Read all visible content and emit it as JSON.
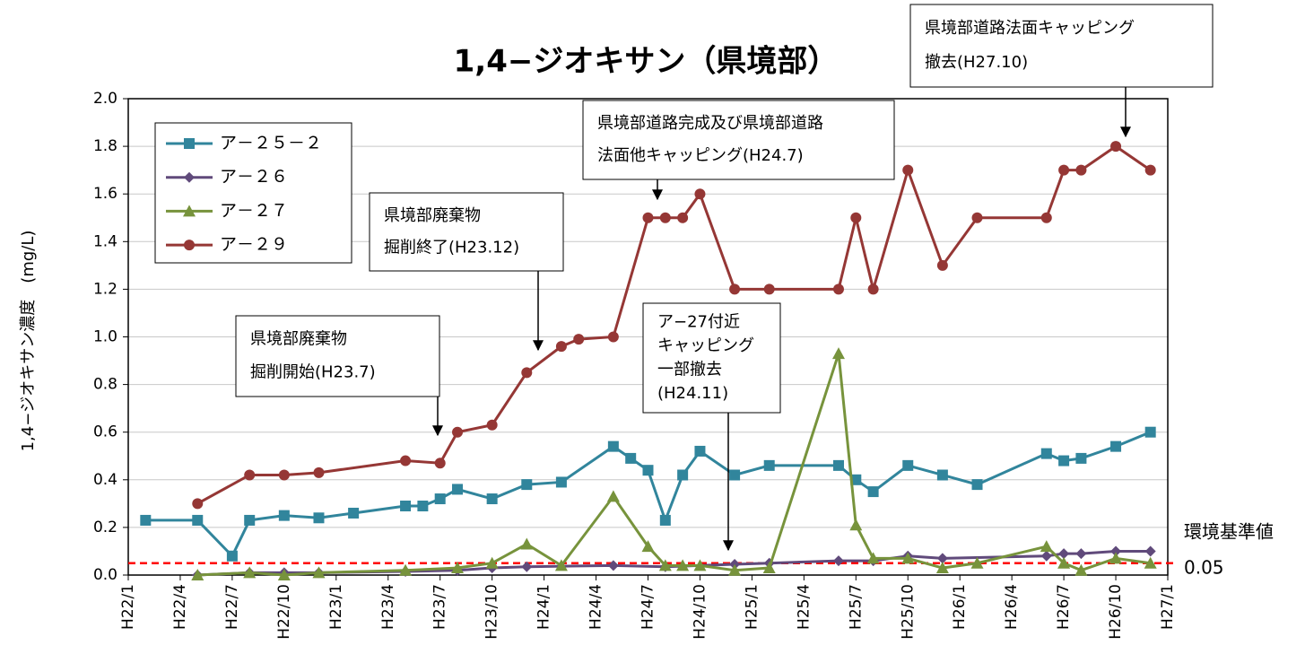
{
  "chart_data": {
    "type": "line",
    "title": "1,4−ジオキサン（県境部）",
    "y_label": "1,4−ジオキサン濃度　(mg/L)",
    "xlim": [
      "H22/1",
      "H27/1"
    ],
    "xticks": [
      "H22/1",
      "H22/4",
      "H22/7",
      "H22/10",
      "H23/1",
      "H23/4",
      "H23/7",
      "H23/10",
      "H24/1",
      "H24/4",
      "H24/7",
      "H24/10",
      "H25/1",
      "H25/4",
      "H25/7",
      "H25/10",
      "H26/1",
      "H26/4",
      "H26/7",
      "H26/10",
      "H27/1"
    ],
    "ylim": [
      0,
      2
    ],
    "yticks": [
      {
        "value": 0,
        "label": "0.0"
      },
      {
        "value": 0.2,
        "label": "0.2"
      },
      {
        "value": 0.4,
        "label": "0.4"
      },
      {
        "value": 0.6,
        "label": "0.6"
      },
      {
        "value": 0.8,
        "label": "0.8"
      },
      {
        "value": 1,
        "label": "1.0"
      },
      {
        "value": 1.2,
        "label": "1.2"
      },
      {
        "value": 1.4,
        "label": "1.4"
      },
      {
        "value": 1.6,
        "label": "1.6"
      },
      {
        "value": 1.8,
        "label": "1.8"
      },
      {
        "value": 2,
        "label": "2.0"
      }
    ],
    "grid": true,
    "legend": "upper left",
    "series": [
      {
        "name": "ア－２５－２",
        "color": "#31859c",
        "marker": "square",
        "x": [
          "H22/2",
          "H22/5",
          "H22/7",
          "H22/8",
          "H22/10",
          "H22/12",
          "H23/2",
          "H23/5",
          "H23/6",
          "H23/7",
          "H23/8",
          "H23/10",
          "H23/12",
          "H24/2",
          "H24/5",
          "H24/6",
          "H24/7",
          "H24/8",
          "H24/9",
          "H24/10",
          "H24/12",
          "H25/2",
          "H25/6",
          "H25/7",
          "H25/8",
          "H25/10",
          "H25/12",
          "H26/2",
          "H26/6",
          "H26/7",
          "H26/8",
          "H26/10",
          "H26/12"
        ],
        "values": [
          0.23,
          0.23,
          0.08,
          0.23,
          0.25,
          0.24,
          0.26,
          0.29,
          0.29,
          0.32,
          0.36,
          0.32,
          0.38,
          0.39,
          0.54,
          0.49,
          0.44,
          0.23,
          0.42,
          0.52,
          0.42,
          0.46,
          0.46,
          0.4,
          0.35,
          0.46,
          0.42,
          0.38,
          0.51,
          0.48,
          0.49,
          0.54,
          0.6
        ]
      },
      {
        "name": "ア－２６",
        "color": "#604a7b",
        "marker": "diamond",
        "x": [
          "H22/5",
          "H22/8",
          "H22/10",
          "H22/12",
          "H23/5",
          "H23/8",
          "H23/10",
          "H23/12",
          "H24/5",
          "H24/8",
          "H24/12",
          "H25/2",
          "H25/6",
          "H25/8",
          "H25/10",
          "H25/12",
          "H26/6",
          "H26/7",
          "H26/8",
          "H26/10",
          "H26/12"
        ],
        "values": [
          0.0,
          0.01,
          0.01,
          0.01,
          0.015,
          0.02,
          0.03,
          0.035,
          0.04,
          0.035,
          0.045,
          0.05,
          0.06,
          0.06,
          0.08,
          0.07,
          0.08,
          0.09,
          0.09,
          0.1,
          0.1
        ]
      },
      {
        "name": "ア－２７",
        "color": "#77933c",
        "marker": "triangle",
        "x": [
          "H22/5",
          "H22/8",
          "H22/10",
          "H22/12",
          "H23/5",
          "H23/8",
          "H23/10",
          "H23/12",
          "H24/2",
          "H24/5",
          "H24/7",
          "H24/8",
          "H24/9",
          "H24/10",
          "H24/12",
          "H25/2",
          "H25/6",
          "H25/7",
          "H25/8",
          "H25/10",
          "H25/12",
          "H26/2",
          "H26/6",
          "H26/7",
          "H26/8",
          "H26/10",
          "H26/12"
        ],
        "values": [
          0.0,
          0.01,
          0.0,
          0.01,
          0.02,
          0.03,
          0.05,
          0.13,
          0.04,
          0.33,
          0.12,
          0.04,
          0.04,
          0.04,
          0.02,
          0.03,
          0.93,
          0.21,
          0.07,
          0.07,
          0.03,
          0.05,
          0.12,
          0.05,
          0.02,
          0.07,
          0.05
        ]
      },
      {
        "name": "ア－２９",
        "color": "#953735",
        "marker": "circle",
        "x": [
          "H22/5",
          "H22/8",
          "H22/10",
          "H22/12",
          "H23/5",
          "H23/7",
          "H23/8",
          "H23/10",
          "H23/12",
          "H24/2",
          "H24/3",
          "H24/5",
          "H24/7",
          "H24/8",
          "H24/9",
          "H24/10",
          "H24/12",
          "H25/2",
          "H25/6",
          "H25/7",
          "H25/8",
          "H25/10",
          "H25/12",
          "H26/2",
          "H26/6",
          "H26/7",
          "H26/8",
          "H26/10",
          "H26/12"
        ],
        "values": [
          0.3,
          0.42,
          0.42,
          0.43,
          0.48,
          0.47,
          0.6,
          0.63,
          0.85,
          0.96,
          0.99,
          1.0,
          1.5,
          1.5,
          1.5,
          1.6,
          1.2,
          1.2,
          1.2,
          1.5,
          1.2,
          1.7,
          1.3,
          1.5,
          1.5,
          1.7,
          1.7,
          1.8,
          1.7
        ]
      }
    ],
    "reference": {
      "label": "環境基準値",
      "value": 0.05,
      "color": "#ff0000"
    },
    "annotations": [
      {
        "text": [
          "県境部廃棄物",
          "掘削開始(H23.7)"
        ]
      },
      {
        "text": [
          "県境部廃棄物",
          "掘削終了(H23.12)"
        ]
      },
      {
        "text": [
          "県境部道路完成及び県境部道路",
          "法面他キャッピング(H24.7)"
        ]
      },
      {
        "text": [
          "県境部道路法面キャッピング",
          "撤去(H27.10)"
        ]
      },
      {
        "text": [
          "ア−27付近",
          "キャッピング",
          "一部撤去",
          "(H24.11)"
        ]
      }
    ]
  }
}
